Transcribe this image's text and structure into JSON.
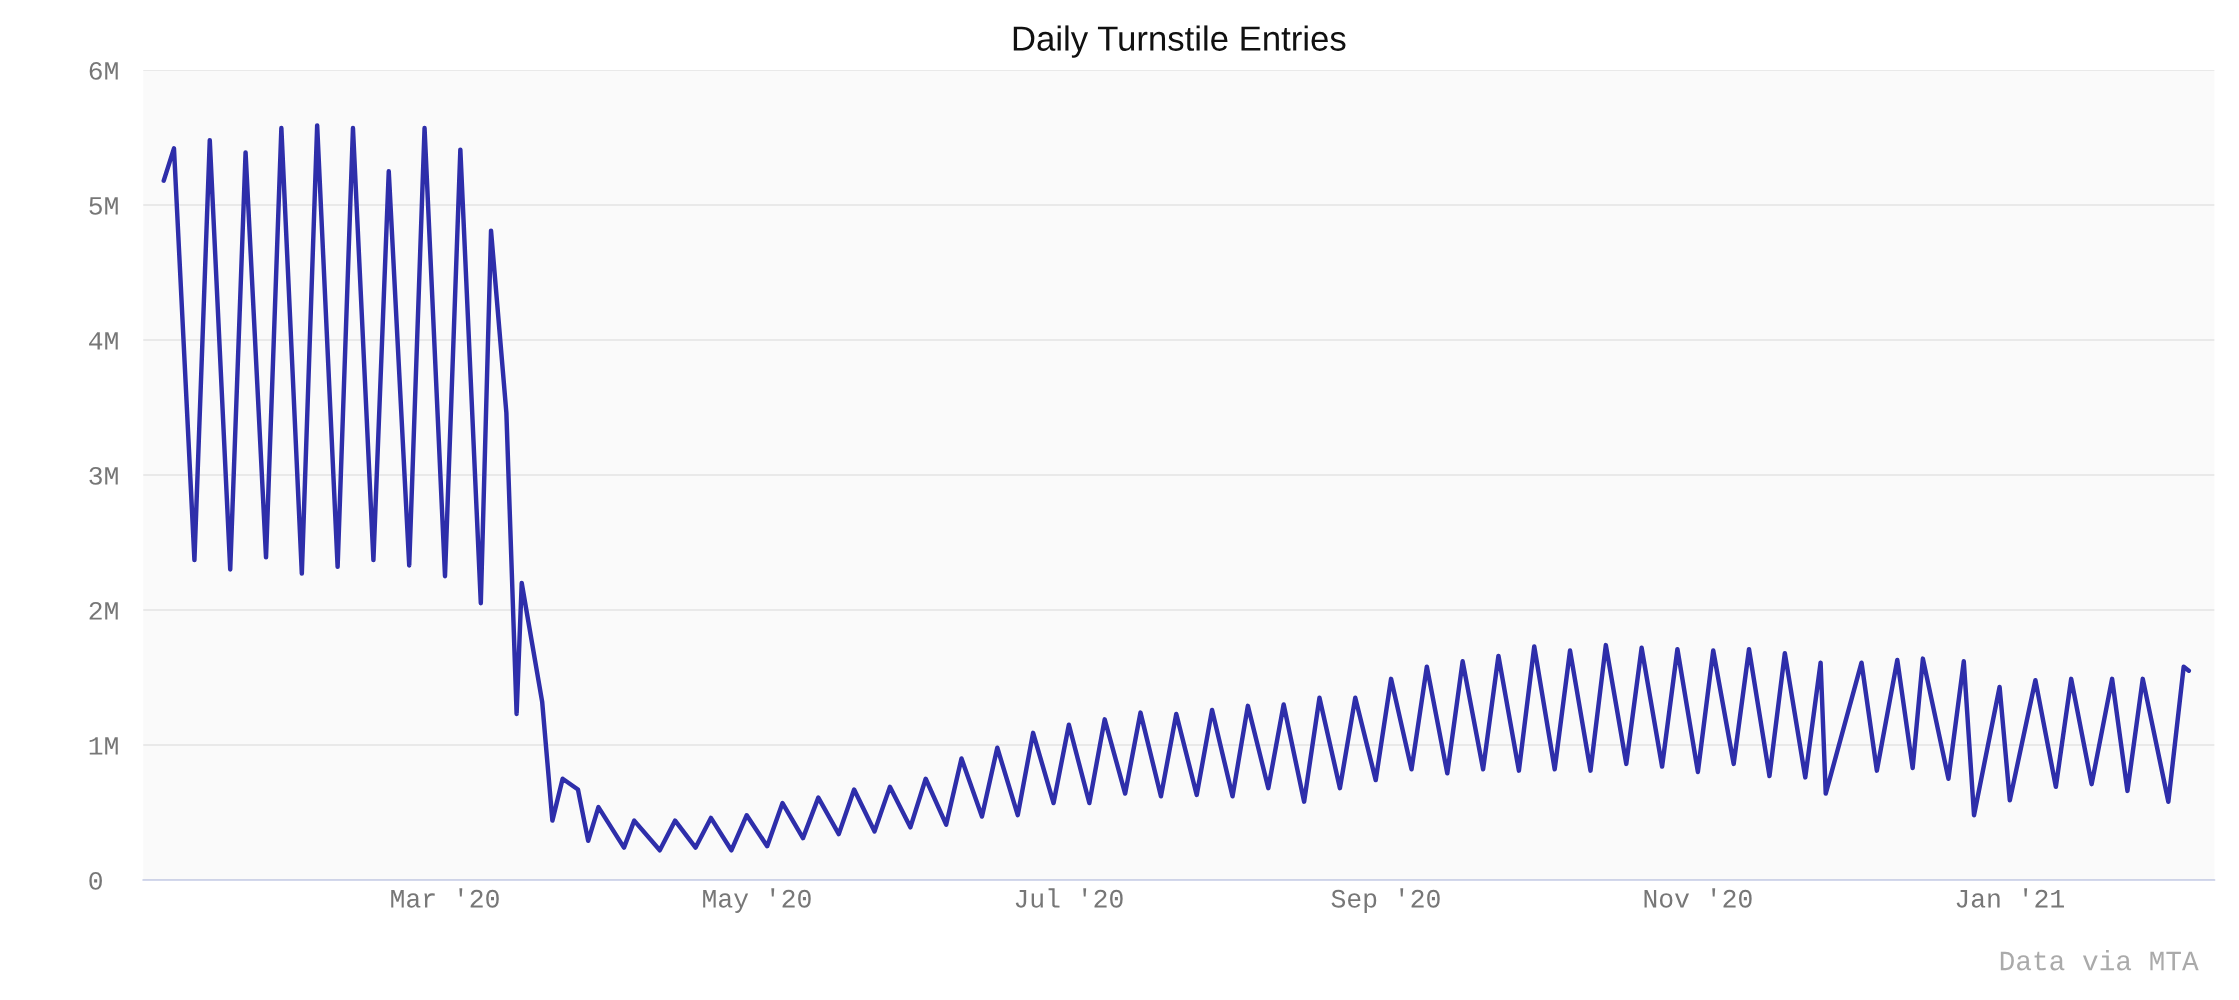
{
  "chart_data": {
    "type": "line",
    "title": "Daily Turnstile Entries",
    "x": [
      "2020-01-06",
      "2020-01-08",
      "2020-01-12",
      "2020-01-15",
      "2020-01-19",
      "2020-01-22",
      "2020-01-26",
      "2020-01-29",
      "2020-02-02",
      "2020-02-05",
      "2020-02-09",
      "2020-02-12",
      "2020-02-16",
      "2020-02-19",
      "2020-02-23",
      "2020-02-26",
      "2020-03-01",
      "2020-03-04",
      "2020-03-08",
      "2020-03-10",
      "2020-03-13",
      "2020-03-15",
      "2020-03-16",
      "2020-03-20",
      "2020-03-22",
      "2020-03-24",
      "2020-03-27",
      "2020-03-29",
      "2020-03-31",
      "2020-04-05",
      "2020-04-07",
      "2020-04-12",
      "2020-04-15",
      "2020-04-19",
      "2020-04-22",
      "2020-04-26",
      "2020-04-29",
      "2020-05-03",
      "2020-05-06",
      "2020-05-10",
      "2020-05-13",
      "2020-05-17",
      "2020-05-20",
      "2020-05-24",
      "2020-05-27",
      "2020-05-31",
      "2020-06-03",
      "2020-06-07",
      "2020-06-10",
      "2020-06-14",
      "2020-06-17",
      "2020-06-21",
      "2020-06-24",
      "2020-06-28",
      "2020-07-01",
      "2020-07-05",
      "2020-07-08",
      "2020-07-12",
      "2020-07-15",
      "2020-07-19",
      "2020-07-22",
      "2020-07-26",
      "2020-07-29",
      "2020-08-02",
      "2020-08-05",
      "2020-08-09",
      "2020-08-12",
      "2020-08-16",
      "2020-08-19",
      "2020-08-23",
      "2020-08-26",
      "2020-08-30",
      "2020-09-02",
      "2020-09-06",
      "2020-09-09",
      "2020-09-13",
      "2020-09-16",
      "2020-09-20",
      "2020-09-23",
      "2020-09-27",
      "2020-09-30",
      "2020-10-04",
      "2020-10-07",
      "2020-10-11",
      "2020-10-14",
      "2020-10-18",
      "2020-10-21",
      "2020-10-25",
      "2020-10-28",
      "2020-11-01",
      "2020-11-04",
      "2020-11-08",
      "2020-11-11",
      "2020-11-15",
      "2020-11-18",
      "2020-11-22",
      "2020-11-25",
      "2020-11-26",
      "2020-12-03",
      "2020-12-06",
      "2020-12-10",
      "2020-12-13",
      "2020-12-15",
      "2020-12-20",
      "2020-12-23",
      "2020-12-25",
      "2020-12-30",
      "2021-01-01",
      "2021-01-06",
      "2021-01-10",
      "2021-01-13",
      "2021-01-17",
      "2021-01-21",
      "2021-01-24",
      "2021-01-27",
      "2021-02-01",
      "2021-02-04",
      "2021-02-05"
    ],
    "series": [
      {
        "color": "#2e2eaa",
        "values": [
          5.18,
          5.42,
          2.37,
          5.48,
          2.3,
          5.39,
          2.39,
          5.57,
          2.27,
          5.59,
          2.32,
          5.57,
          2.37,
          5.25,
          2.33,
          5.57,
          2.25,
          5.41,
          2.05,
          4.81,
          3.46,
          1.23,
          2.2,
          1.32,
          0.44,
          0.75,
          0.67,
          0.29,
          0.54,
          0.24,
          0.44,
          0.22,
          0.44,
          0.24,
          0.46,
          0.22,
          0.48,
          0.25,
          0.57,
          0.31,
          0.61,
          0.34,
          0.67,
          0.36,
          0.69,
          0.39,
          0.75,
          0.41,
          0.9,
          0.47,
          0.98,
          0.48,
          1.09,
          0.57,
          1.15,
          0.57,
          1.19,
          0.64,
          1.24,
          0.62,
          1.23,
          0.63,
          1.26,
          0.62,
          1.29,
          0.68,
          1.3,
          0.58,
          1.35,
          0.68,
          1.35,
          0.74,
          1.49,
          0.82,
          1.58,
          0.79,
          1.62,
          0.82,
          1.66,
          0.81,
          1.73,
          0.82,
          1.7,
          0.81,
          1.74,
          0.86,
          1.72,
          0.84,
          1.71,
          0.8,
          1.7,
          0.86,
          1.71,
          0.77,
          1.68,
          0.76,
          1.61,
          0.64,
          1.61,
          0.81,
          1.63,
          0.83,
          1.64,
          0.75,
          1.62,
          0.48,
          1.43,
          0.59,
          1.48,
          0.69,
          1.49,
          0.71,
          1.49,
          0.66,
          1.49,
          0.58,
          1.58,
          1.55
        ]
      }
    ],
    "xlim": [
      "2020-01-02",
      "2021-02-10"
    ],
    "xticks": [
      {
        "value": "2020-03-01",
        "label": "Mar '20"
      },
      {
        "value": "2020-05-01",
        "label": "May '20"
      },
      {
        "value": "2020-07-01",
        "label": "Jul '20"
      },
      {
        "value": "2020-09-01",
        "label": "Sep '20"
      },
      {
        "value": "2020-11-01",
        "label": "Nov '20"
      },
      {
        "value": "2021-01-01",
        "label": "Jan '21"
      }
    ],
    "ylim": [
      0,
      6
    ],
    "yticks": [
      {
        "value": 0,
        "label": "0"
      },
      {
        "value": 1,
        "label": "1M"
      },
      {
        "value": 2,
        "label": "2M"
      },
      {
        "value": 3,
        "label": "3M"
      },
      {
        "value": 4,
        "label": "4M"
      },
      {
        "value": 5,
        "label": "5M"
      },
      {
        "value": 6,
        "label": "6M"
      }
    ],
    "grid": "y",
    "marker": "none",
    "line_style": "solid",
    "annotations": [
      "Data via MTA"
    ]
  }
}
